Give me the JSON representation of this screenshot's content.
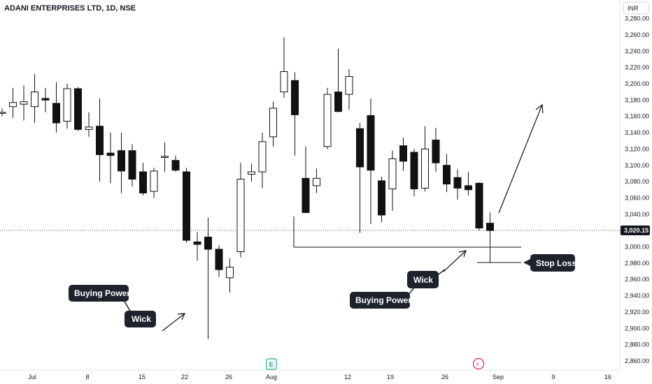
{
  "header": {
    "title": "ADANI ENTERPRISES LTD, 1D, NSE",
    "currency": "INR"
  },
  "chart_data": {
    "type": "candlestick",
    "y_ticks": [
      "3,280.00",
      "3,260.00",
      "3,240.00",
      "3,220.00",
      "3,200.00",
      "3,180.00",
      "3,160.00",
      "3,140.00",
      "3,120.00",
      "3,100.00",
      "3,080.00",
      "3,060.00",
      "3,040.00",
      "3,020.00",
      "3,000.00",
      "2,980.00",
      "2,960.00",
      "2,940.00",
      "2,920.00",
      "2,900.00",
      "2,880.00",
      "2,860.00"
    ],
    "x_ticks": [
      "Jul",
      "8",
      "15",
      "22",
      "26",
      "Aug",
      "12",
      "19",
      "26",
      "Sep",
      "9",
      "16"
    ],
    "current_price": 3020.15,
    "current_price_label": "3,020.15",
    "candles": [
      {
        "o": 3165,
        "h": 3170,
        "l": 3160,
        "c": 3165
      },
      {
        "o": 3172,
        "h": 3195,
        "l": 3158,
        "c": 3177
      },
      {
        "o": 3175,
        "h": 3198,
        "l": 3155,
        "c": 3178
      },
      {
        "o": 3172,
        "h": 3212,
        "l": 3152,
        "c": 3190
      },
      {
        "o": 3182,
        "h": 3195,
        "l": 3165,
        "c": 3180
      },
      {
        "o": 3176,
        "h": 3202,
        "l": 3140,
        "c": 3152
      },
      {
        "o": 3154,
        "h": 3200,
        "l": 3145,
        "c": 3194
      },
      {
        "o": 3194,
        "h": 3196,
        "l": 3142,
        "c": 3144
      },
      {
        "o": 3144,
        "h": 3165,
        "l": 3135,
        "c": 3147
      },
      {
        "o": 3148,
        "h": 3182,
        "l": 3080,
        "c": 3113
      },
      {
        "o": 3115,
        "h": 3140,
        "l": 3078,
        "c": 3112
      },
      {
        "o": 3118,
        "h": 3140,
        "l": 3066,
        "c": 3093
      },
      {
        "o": 3118,
        "h": 3126,
        "l": 3074,
        "c": 3083
      },
      {
        "o": 3092,
        "h": 3103,
        "l": 3063,
        "c": 3066
      },
      {
        "o": 3068,
        "h": 3097,
        "l": 3060,
        "c": 3093
      },
      {
        "o": 3111,
        "h": 3128,
        "l": 3092,
        "c": 3111
      },
      {
        "o": 3106,
        "h": 3112,
        "l": 3092,
        "c": 3094
      },
      {
        "o": 3092,
        "h": 3097,
        "l": 3005,
        "c": 3008
      },
      {
        "o": 3006,
        "h": 3018,
        "l": 2983,
        "c": 3003
      },
      {
        "o": 3012,
        "h": 3036,
        "l": 2887,
        "c": 2997
      },
      {
        "o": 2997,
        "h": 3002,
        "l": 2963,
        "c": 2972
      },
      {
        "o": 2962,
        "h": 2986,
        "l": 2944,
        "c": 2975
      },
      {
        "o": 2994,
        "h": 3103,
        "l": 2987,
        "c": 3083
      },
      {
        "o": 3089,
        "h": 3102,
        "l": 3080,
        "c": 3092
      },
      {
        "o": 3092,
        "h": 3140,
        "l": 3072,
        "c": 3129
      },
      {
        "o": 3135,
        "h": 3178,
        "l": 3123,
        "c": 3170
      },
      {
        "o": 3190,
        "h": 3257,
        "l": 3183,
        "c": 3215
      },
      {
        "o": 3204,
        "h": 3214,
        "l": 3112,
        "c": 3162
      },
      {
        "o": 3084,
        "h": 3123,
        "l": 3042,
        "c": 3042
      },
      {
        "o": 3075,
        "h": 3096,
        "l": 3066,
        "c": 3084
      },
      {
        "o": 3123,
        "h": 3195,
        "l": 3120,
        "c": 3187
      },
      {
        "o": 3190,
        "h": 3243,
        "l": 3165,
        "c": 3166
      },
      {
        "o": 3187,
        "h": 3218,
        "l": 3168,
        "c": 3209
      },
      {
        "o": 3145,
        "h": 3152,
        "l": 3017,
        "c": 3098
      },
      {
        "o": 3161,
        "h": 3182,
        "l": 3028,
        "c": 3094
      },
      {
        "o": 3081,
        "h": 3086,
        "l": 3030,
        "c": 3039
      },
      {
        "o": 3071,
        "h": 3118,
        "l": 3044,
        "c": 3108
      },
      {
        "o": 3124,
        "h": 3134,
        "l": 3093,
        "c": 3105
      },
      {
        "o": 3116,
        "h": 3120,
        "l": 3062,
        "c": 3071
      },
      {
        "o": 3072,
        "h": 3148,
        "l": 3068,
        "c": 3120
      },
      {
        "o": 3131,
        "h": 3146,
        "l": 3092,
        "c": 3103
      },
      {
        "o": 3100,
        "h": 3114,
        "l": 3067,
        "c": 3077
      },
      {
        "o": 3085,
        "h": 3095,
        "l": 3058,
        "c": 3072
      },
      {
        "o": 3075,
        "h": 3092,
        "l": 3063,
        "c": 3070
      },
      {
        "o": 3078,
        "h": 3079,
        "l": 3020,
        "c": 3023
      },
      {
        "o": 3029,
        "h": 3042,
        "l": 2980,
        "c": 3020
      }
    ],
    "callouts": [
      "Buying Power",
      "Wick",
      "Wick",
      "Buying Power",
      "Stop Loss"
    ],
    "colors": {
      "up_fill": "#ffffff",
      "down_fill": "#111111",
      "wick": "#111111",
      "callout_bg": "#1e222d"
    }
  },
  "events": {
    "earnings_icon": "E",
    "split_icon": "⚡"
  }
}
